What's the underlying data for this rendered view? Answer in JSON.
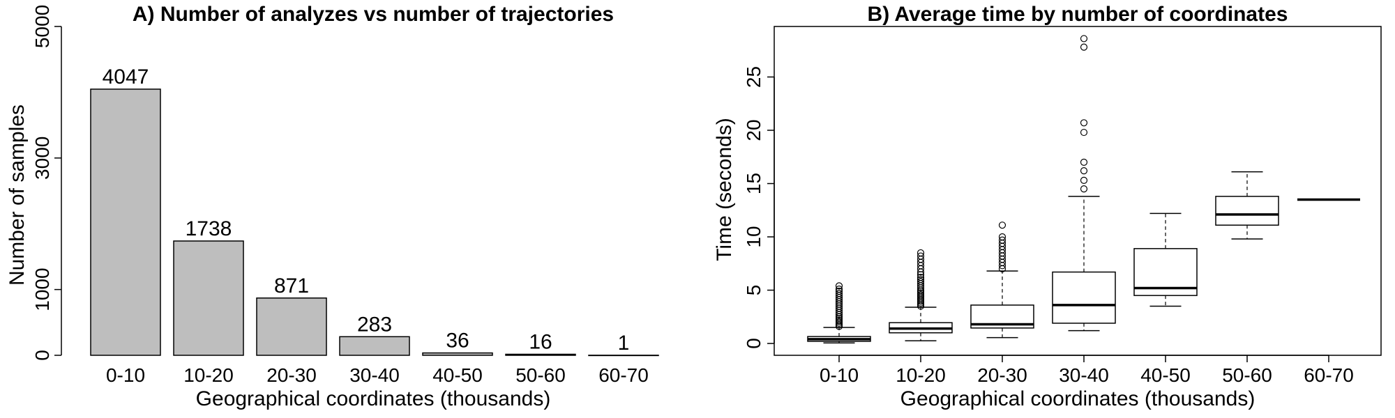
{
  "chart_data": [
    {
      "type": "bar",
      "title": "A) Number of analyzes vs number of trajectories",
      "xlabel": "Geographical coordinates (thousands)",
      "ylabel": "Number of samples",
      "categories": [
        "0-10",
        "10-20",
        "20-30",
        "30-40",
        "40-50",
        "50-60",
        "60-70"
      ],
      "values": [
        4047,
        1738,
        871,
        283,
        36,
        16,
        1
      ],
      "value_labels": [
        "4047",
        "1738",
        "871",
        "283",
        "36",
        "16",
        "1"
      ],
      "ylim": [
        0,
        5000
      ],
      "yticks": [
        0,
        1000,
        3000,
        5000
      ],
      "ytick_labels": [
        "0",
        "1000",
        "3000",
        "5000"
      ],
      "bar_color": "#bebebe",
      "grid": false,
      "legend": "none"
    },
    {
      "type": "box",
      "title": "B) Average time by number of coordinates",
      "xlabel": "Geographical coordinates (thousands)",
      "ylabel": "Time (seconds)",
      "categories": [
        "0-10",
        "10-20",
        "20-30",
        "30-40",
        "40-50",
        "50-60",
        "60-70"
      ],
      "ylim": [
        0,
        30
      ],
      "yticks": [
        0,
        5,
        10,
        15,
        20,
        25
      ],
      "ytick_labels": [
        "0",
        "5",
        "10",
        "15",
        "20",
        "25"
      ],
      "boxes": [
        {
          "category": "0-10",
          "whisker_low": 0.05,
          "q1": 0.2,
          "median": 0.4,
          "q3": 0.65,
          "whisker_high": 1.5,
          "outliers": [
            1.6,
            1.75,
            1.9,
            2.05,
            2.2,
            2.35,
            2.5,
            2.7,
            2.9,
            3.1,
            3.3,
            3.5,
            3.7,
            3.9,
            4.1,
            4.3,
            4.5,
            4.7,
            4.9,
            5.1,
            5.4
          ]
        },
        {
          "category": "10-20",
          "whisker_low": 0.25,
          "q1": 1.0,
          "median": 1.4,
          "q3": 1.95,
          "whisker_high": 3.4,
          "outliers": [
            3.5,
            3.65,
            3.8,
            3.95,
            4.1,
            4.25,
            4.4,
            4.55,
            4.7,
            4.85,
            5.0,
            5.2,
            5.4,
            5.6,
            5.8,
            6.0,
            6.2,
            6.45,
            6.7,
            7.0,
            7.3,
            7.6,
            7.9,
            8.2,
            8.5
          ]
        },
        {
          "category": "20-30",
          "whisker_low": 0.55,
          "q1": 1.45,
          "median": 1.8,
          "q3": 3.6,
          "whisker_high": 6.8,
          "outliers": [
            7.0,
            7.3,
            7.6,
            7.9,
            8.2,
            8.5,
            8.8,
            9.1,
            9.4,
            9.7,
            10.0,
            11.1
          ]
        },
        {
          "category": "30-40",
          "whisker_low": 1.2,
          "q1": 1.9,
          "median": 3.6,
          "q3": 6.7,
          "whisker_high": 13.8,
          "outliers": [
            14.5,
            15.3,
            16.2,
            17.0,
            19.8,
            20.7,
            27.8,
            28.6
          ]
        },
        {
          "category": "40-50",
          "whisker_low": 3.5,
          "q1": 4.5,
          "median": 5.2,
          "q3": 8.9,
          "whisker_high": 12.2,
          "outliers": []
        },
        {
          "category": "50-60",
          "whisker_low": 9.8,
          "q1": 11.1,
          "median": 12.1,
          "q3": 13.8,
          "whisker_high": 16.1,
          "outliers": []
        },
        {
          "category": "60-70",
          "whisker_low": 13.5,
          "q1": 13.5,
          "median": 13.5,
          "q3": 13.5,
          "whisker_high": 13.5,
          "outliers": []
        }
      ],
      "grid": false,
      "legend": "none"
    }
  ]
}
